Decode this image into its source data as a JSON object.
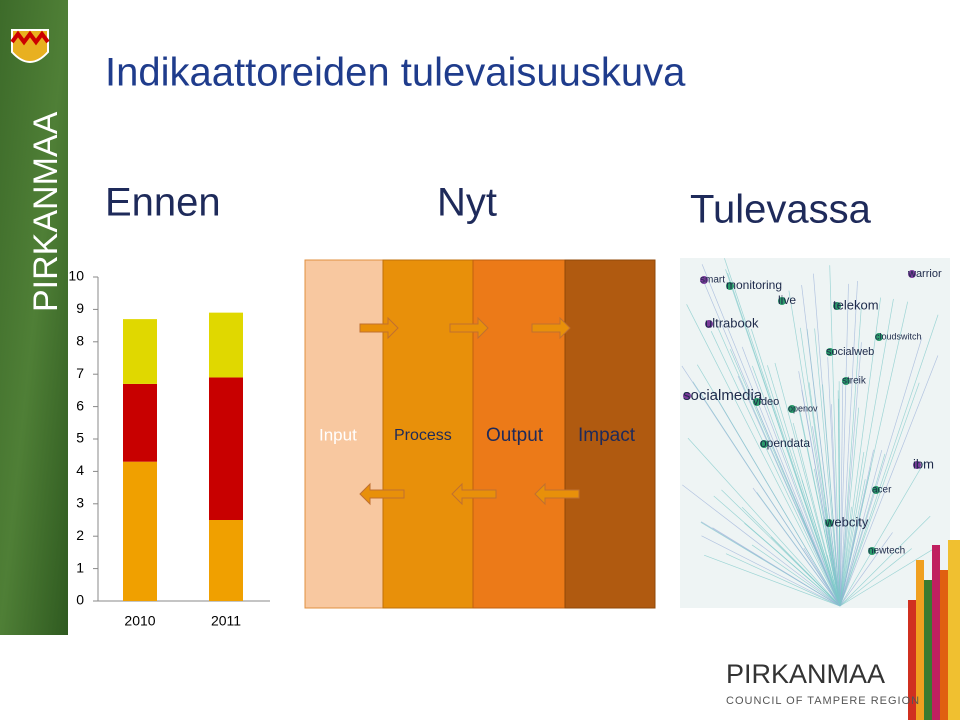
{
  "header": {
    "title": "Indikaattoreiden tulevaisuuskuva",
    "brand": "PIRKANMAA"
  },
  "columns": [
    "Ennen",
    "Nyt",
    "Tulevassa"
  ],
  "chart_data": {
    "type": "stacked-bar",
    "categories": [
      "2010",
      "2011"
    ],
    "series": [
      {
        "color": "#f0a000",
        "values": [
          4.3,
          2.5
        ]
      },
      {
        "color": "#c80000",
        "values": [
          2.4,
          4.4
        ]
      },
      {
        "color": "#e0d800",
        "values": [
          2.0,
          2.0
        ]
      }
    ],
    "ylim": [
      0,
      10
    ],
    "yticks": [
      0,
      1,
      2,
      3,
      4,
      5,
      6,
      7,
      8,
      9,
      10
    ]
  },
  "process": {
    "stages": [
      "Input",
      "Process",
      "Output",
      "Impact"
    ]
  },
  "network": {
    "labels": [
      "smart",
      "monitoring",
      "live",
      "telekom",
      "ultrabook",
      "socialweb",
      "cloudswitch",
      "streik",
      "socialmedia",
      "video",
      "openov",
      "opendata",
      "ibm",
      "acer",
      "webcity",
      "newtech",
      "warrior"
    ]
  },
  "footer": {
    "brand": "PIRKANMAA",
    "subtitle": "COUNCIL OF TAMPERE REGION"
  }
}
